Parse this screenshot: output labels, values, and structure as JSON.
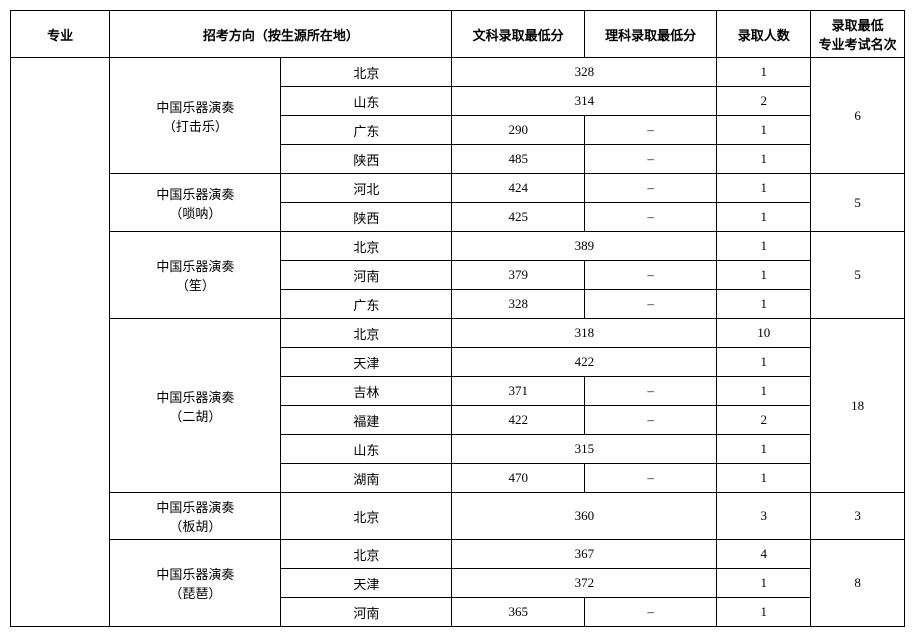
{
  "headers": {
    "major": "专业",
    "direction": "招考方向（按生源所在地）",
    "wenke": "文科录取最低分",
    "like": "理科录取最低分",
    "count": "录取人数",
    "rank": "录取最低\n专业考试名次"
  },
  "groups": [
    {
      "direction": "中国乐器演奏\n（打击乐）",
      "rank": "6",
      "rows": [
        {
          "prov": "北京",
          "merged": "328",
          "count": "1"
        },
        {
          "prov": "山东",
          "merged": "314",
          "count": "2"
        },
        {
          "prov": "广东",
          "wen": "290",
          "li": "–",
          "count": "1"
        },
        {
          "prov": "陕西",
          "wen": "485",
          "li": "–",
          "count": "1"
        }
      ]
    },
    {
      "direction": "中国乐器演奏\n（唢呐）",
      "rank": "5",
      "rows": [
        {
          "prov": "河北",
          "wen": "424",
          "li": "–",
          "count": "1"
        },
        {
          "prov": "陕西",
          "wen": "425",
          "li": "–",
          "count": "1"
        }
      ]
    },
    {
      "direction": "中国乐器演奏\n（笙）",
      "rank": "5",
      "rows": [
        {
          "prov": "北京",
          "merged": "389",
          "count": "1"
        },
        {
          "prov": "河南",
          "wen": "379",
          "li": "–",
          "count": "1"
        },
        {
          "prov": "广东",
          "wen": "328",
          "li": "–",
          "count": "1"
        }
      ]
    },
    {
      "direction": "中国乐器演奏\n（二胡）",
      "rank": "18",
      "rows": [
        {
          "prov": "北京",
          "merged": "318",
          "count": "10"
        },
        {
          "prov": "天津",
          "merged": "422",
          "count": "1"
        },
        {
          "prov": "吉林",
          "wen": "371",
          "li": "–",
          "count": "1"
        },
        {
          "prov": "福建",
          "wen": "422",
          "li": "–",
          "count": "2"
        },
        {
          "prov": "山东",
          "merged": "315",
          "count": "1"
        },
        {
          "prov": "湖南",
          "wen": "470",
          "li": "–",
          "count": "1"
        }
      ]
    },
    {
      "direction": "中国乐器演奏\n（板胡）",
      "rank": "3",
      "rows": [
        {
          "prov": "北京",
          "merged": "360",
          "count": "3"
        }
      ]
    },
    {
      "direction": "中国乐器演奏\n（琵琶）",
      "rank": "8",
      "rows": [
        {
          "prov": "北京",
          "merged": "367",
          "count": "4"
        },
        {
          "prov": "天津",
          "merged": "372",
          "count": "1"
        },
        {
          "prov": "河南",
          "wen": "365",
          "li": "–",
          "count": "1"
        }
      ]
    }
  ]
}
